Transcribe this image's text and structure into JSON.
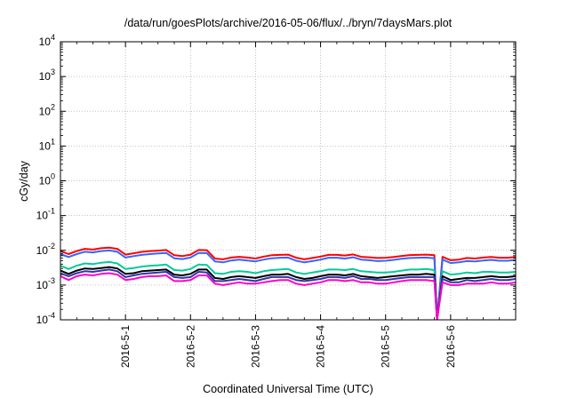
{
  "chart_data": {
    "type": "line",
    "title": "/data/run/goesPlots/archive/2016-05-06/flux/../bryn/7daysMars.plot",
    "xlabel": "Coordinated Universal Time (UTC)",
    "ylabel": "cGy/day",
    "yscale": "log",
    "ylim": [
      "1e-4",
      "1e4"
    ],
    "xlim": [
      "2016-04-30T00:00",
      "2016-05-07T00:00"
    ],
    "grid": true,
    "legend": "none",
    "y_ticks": [
      {
        "base": "10",
        "exp": "-4"
      },
      {
        "base": "10",
        "exp": "-3"
      },
      {
        "base": "10",
        "exp": "-2"
      },
      {
        "base": "10",
        "exp": "-1"
      },
      {
        "base": "10",
        "exp": "0"
      },
      {
        "base": "10",
        "exp": "1"
      },
      {
        "base": "10",
        "exp": "2"
      },
      {
        "base": "10",
        "exp": "3"
      },
      {
        "base": "10",
        "exp": "4"
      }
    ],
    "x_ticks": [
      "2016-5-1",
      "2016-5-2",
      "2016-5-3",
      "2016-5-4",
      "2016-5-5",
      "2016-5-6"
    ],
    "x_tick_dates": [
      "2016-05-01",
      "2016-05-02",
      "2016-05-03",
      "2016-05-04",
      "2016-05-05",
      "2016-05-06"
    ],
    "x": [
      "2016-04-30T00:00",
      "2016-04-30T03:00",
      "2016-04-30T06:00",
      "2016-04-30T09:00",
      "2016-04-30T12:00",
      "2016-04-30T15:00",
      "2016-04-30T18:00",
      "2016-04-30T21:00",
      "2016-05-01T00:00",
      "2016-05-01T03:00",
      "2016-05-01T06:00",
      "2016-05-01T09:00",
      "2016-05-01T12:00",
      "2016-05-01T15:00",
      "2016-05-01T18:00",
      "2016-05-01T21:00",
      "2016-05-02T00:00",
      "2016-05-02T03:00",
      "2016-05-02T06:00",
      "2016-05-02T09:00",
      "2016-05-02T12:00",
      "2016-05-02T15:00",
      "2016-05-02T18:00",
      "2016-05-02T21:00",
      "2016-05-03T00:00",
      "2016-05-03T03:00",
      "2016-05-03T06:00",
      "2016-05-03T09:00",
      "2016-05-03T12:00",
      "2016-05-03T15:00",
      "2016-05-03T18:00",
      "2016-05-03T21:00",
      "2016-05-04T00:00",
      "2016-05-04T03:00",
      "2016-05-04T06:00",
      "2016-05-04T09:00",
      "2016-05-04T12:00",
      "2016-05-04T15:00",
      "2016-05-04T18:00",
      "2016-05-04T21:00",
      "2016-05-05T00:00",
      "2016-05-05T03:00",
      "2016-05-05T06:00",
      "2016-05-05T09:00",
      "2016-05-05T12:00",
      "2016-05-05T15:00",
      "2016-05-05T18:00",
      "2016-05-05T19:00",
      "2016-05-05T21:00",
      "2016-05-06T00:00",
      "2016-05-06T03:00",
      "2016-05-06T06:00",
      "2016-05-06T09:00",
      "2016-05-06T12:00",
      "2016-05-06T15:00",
      "2016-05-06T18:00",
      "2016-05-06T21:00",
      "2016-05-07T00:00"
    ],
    "series": [
      {
        "color": "#ff0000",
        "values": [
          0.0095,
          0.0078,
          0.0095,
          0.011,
          0.0105,
          0.0115,
          0.012,
          0.011,
          0.0075,
          0.0082,
          0.009,
          0.0095,
          0.0098,
          0.0102,
          0.0072,
          0.0068,
          0.0075,
          0.0102,
          0.0101,
          0.0058,
          0.0055,
          0.0062,
          0.0065,
          0.0062,
          0.0058,
          0.0066,
          0.0072,
          0.0074,
          0.0075,
          0.0061,
          0.0055,
          0.006,
          0.0066,
          0.0074,
          0.0074,
          0.0071,
          0.0076,
          0.0065,
          0.0063,
          0.006,
          0.0061,
          0.0064,
          0.0069,
          0.0073,
          0.0074,
          0.0075,
          0.0072,
          0.0001,
          0.0065,
          0.0052,
          0.0054,
          0.006,
          0.0058,
          0.0062,
          0.0064,
          0.0061,
          0.0061,
          0.0064
        ]
      },
      {
        "color": "#3366ff",
        "values": [
          0.0078,
          0.0064,
          0.0078,
          0.0091,
          0.0087,
          0.0095,
          0.0099,
          0.0091,
          0.0062,
          0.0068,
          0.0074,
          0.0078,
          0.0081,
          0.0084,
          0.0059,
          0.0056,
          0.0062,
          0.0084,
          0.0083,
          0.0048,
          0.0045,
          0.0051,
          0.0054,
          0.0051,
          0.0048,
          0.0054,
          0.0059,
          0.0061,
          0.0062,
          0.005,
          0.0045,
          0.0049,
          0.0054,
          0.0061,
          0.0061,
          0.0058,
          0.0063,
          0.0054,
          0.0052,
          0.0049,
          0.005,
          0.0053,
          0.0057,
          0.006,
          0.0061,
          0.0062,
          0.0059,
          0.0001,
          0.0054,
          0.0043,
          0.0045,
          0.0049,
          0.0048,
          0.0051,
          0.0053,
          0.005,
          0.005,
          0.0053
        ]
      },
      {
        "color": "#00cc99",
        "values": [
          0.0036,
          0.0029,
          0.0036,
          0.0042,
          0.004,
          0.0044,
          0.0046,
          0.0042,
          0.0029,
          0.0031,
          0.0034,
          0.0036,
          0.0037,
          0.0039,
          0.0027,
          0.0026,
          0.0029,
          0.0039,
          0.0038,
          0.0022,
          0.0021,
          0.0024,
          0.0025,
          0.0024,
          0.0022,
          0.0025,
          0.0027,
          0.0028,
          0.0029,
          0.0023,
          0.0021,
          0.0023,
          0.0025,
          0.0028,
          0.0028,
          0.0027,
          0.0029,
          0.0025,
          0.0024,
          0.0023,
          0.0023,
          0.0024,
          0.0026,
          0.0028,
          0.0028,
          0.0029,
          0.0027,
          0.0001,
          0.0025,
          0.002,
          0.0021,
          0.0023,
          0.0022,
          0.0024,
          0.0024,
          0.0023,
          0.0023,
          0.0024
        ]
      },
      {
        "color": "#000000",
        "values": [
          0.0026,
          0.0021,
          0.0026,
          0.003,
          0.0029,
          0.0031,
          0.0033,
          0.003,
          0.0021,
          0.0022,
          0.0025,
          0.0026,
          0.0027,
          0.0028,
          0.002,
          0.0019,
          0.0021,
          0.0028,
          0.0028,
          0.0016,
          0.0015,
          0.0017,
          0.0018,
          0.0017,
          0.0016,
          0.0018,
          0.002,
          0.002,
          0.0021,
          0.0017,
          0.0015,
          0.0016,
          0.0018,
          0.002,
          0.002,
          0.0019,
          0.0021,
          0.0018,
          0.0017,
          0.0016,
          0.0017,
          0.0018,
          0.0019,
          0.002,
          0.002,
          0.0021,
          0.002,
          0.0001,
          0.0018,
          0.0014,
          0.0015,
          0.0016,
          0.0016,
          0.0017,
          0.0018,
          0.0017,
          0.0017,
          0.0018
        ]
      },
      {
        "color": "#3333aa",
        "values": [
          0.0022,
          0.0018,
          0.0022,
          0.0025,
          0.0024,
          0.0026,
          0.0028,
          0.0025,
          0.0017,
          0.0019,
          0.0021,
          0.0022,
          0.0023,
          0.0024,
          0.0017,
          0.0016,
          0.0017,
          0.0024,
          0.0023,
          0.0013,
          0.0013,
          0.0014,
          0.0015,
          0.0014,
          0.0013,
          0.0015,
          0.0017,
          0.0017,
          0.0017,
          0.0014,
          0.0013,
          0.0014,
          0.0015,
          0.0017,
          0.0017,
          0.0016,
          0.0018,
          0.0015,
          0.0015,
          0.0014,
          0.0014,
          0.0015,
          0.0016,
          0.0017,
          0.0017,
          0.0017,
          0.0017,
          0.0001,
          0.0015,
          0.0012,
          0.0012,
          0.0014,
          0.0013,
          0.0014,
          0.0015,
          0.0014,
          0.0014,
          0.0015
        ]
      },
      {
        "color": "#ff00cc",
        "values": [
          0.0018,
          0.0014,
          0.0018,
          0.002,
          0.0019,
          0.0021,
          0.0022,
          0.002,
          0.0014,
          0.0015,
          0.0017,
          0.0018,
          0.0018,
          0.0019,
          0.0013,
          0.0013,
          0.0014,
          0.0019,
          0.0019,
          0.0011,
          0.001,
          0.0011,
          0.0012,
          0.0011,
          0.0011,
          0.0012,
          0.0013,
          0.0014,
          0.0014,
          0.0011,
          0.001,
          0.0011,
          0.0012,
          0.0014,
          0.0014,
          0.0013,
          0.0014,
          0.0012,
          0.0012,
          0.0011,
          0.0011,
          0.0012,
          0.0013,
          0.0014,
          0.0014,
          0.0014,
          0.0013,
          0.0001,
          0.0012,
          0.001,
          0.001,
          0.0011,
          0.0011,
          0.0011,
          0.0012,
          0.0011,
          0.0011,
          0.0012
        ]
      }
    ]
  }
}
